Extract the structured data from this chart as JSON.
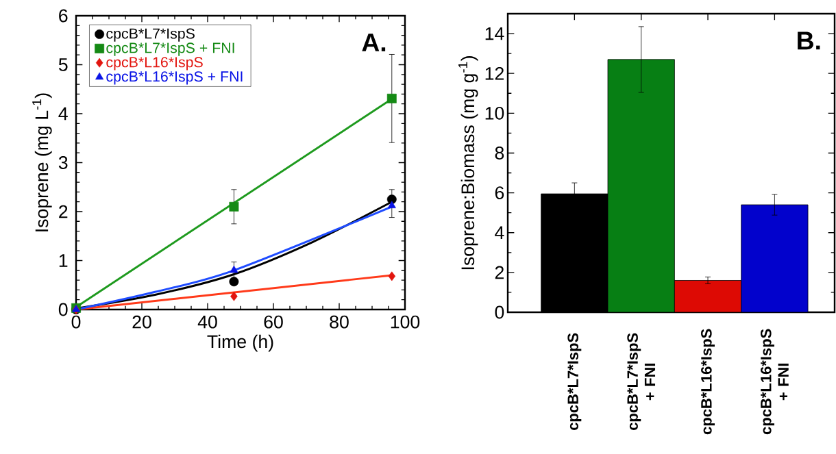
{
  "chart_data": [
    {
      "type": "scatter",
      "xlabel": "Time (h)",
      "ylabel": "Isoprene (mg L$^{-1}$)",
      "xlim": [
        0,
        100
      ],
      "ylim": [
        0,
        6
      ],
      "xticks": [
        0,
        20,
        40,
        60,
        80,
        100
      ],
      "yticks": [
        0,
        1,
        2,
        3,
        4,
        5,
        6
      ],
      "legend": "top left",
      "annotations": [
        "A."
      ],
      "series": [
        {
          "name": "cpcB*L7*IspS",
          "type": "scatter",
          "marker": "circle",
          "color": "#000000",
          "x": [
            0,
            48,
            96
          ],
          "values": [
            0,
            0.57,
            2.25
          ],
          "errors": [
            null,
            null,
            [
              1.88,
              2.45
            ]
          ]
        },
        {
          "name": "cpcB*L7*IspS + FNI",
          "type": "scatter",
          "marker": "square",
          "color": "#158a15",
          "x": [
            0,
            48,
            96
          ],
          "values": [
            0.03,
            2.1,
            4.31
          ],
          "errors": [
            null,
            0.35,
            0.9
          ]
        },
        {
          "name": "cpcB*L16*IspS",
          "type": "scatter",
          "marker": "diamond",
          "color": "#e2150f",
          "x": [
            0,
            48,
            96
          ],
          "values": [
            0,
            0.27,
            0.68
          ],
          "errors": [
            null,
            null,
            null
          ]
        },
        {
          "name": "cpcB*L16*IspS + FNI",
          "type": "scatter",
          "marker": "triangle",
          "color": "#0a14e6",
          "x": [
            0,
            48,
            96
          ],
          "values": [
            0,
            0.8,
            2.12
          ],
          "errors": [
            null,
            0.17,
            null
          ]
        },
        {
          "type": "line",
          "color": "#000000",
          "x": [
            0,
            24,
            48,
            72,
            96
          ],
          "values": [
            0.02,
            0.3,
            0.72,
            1.38,
            2.2
          ]
        },
        {
          "type": "line",
          "color": "#1e9a1e",
          "x": [
            0,
            96
          ],
          "values": [
            0.05,
            4.3
          ]
        },
        {
          "type": "line",
          "color": "#ff3a1a",
          "x": [
            0,
            96
          ],
          "values": [
            0,
            0.7
          ]
        },
        {
          "type": "line",
          "color": "#1f4cff",
          "x": [
            0,
            24,
            48,
            96
          ],
          "values": [
            0,
            0.36,
            0.8,
            2.1
          ]
        }
      ]
    },
    {
      "type": "bar",
      "ylabel": "Isoprene:Biomass (mg g$^{-1}$)",
      "categories": [
        "cpcB*L7*IspS",
        "cpcB*L7*IspS + FNI",
        "cpcB*L16*IspS",
        "cpcB*L16*IspS + FNI"
      ],
      "values": [
        5.95,
        12.7,
        1.6,
        5.4
      ],
      "errors": [
        0.55,
        1.65,
        0.17,
        0.52
      ],
      "colors": [
        "#000000",
        "#077f14",
        "#dd0a04",
        "#0202cc"
      ],
      "ylim": [
        0,
        15
      ],
      "yticks": [
        0,
        2,
        4,
        6,
        8,
        10,
        12,
        14
      ],
      "annotations": [
        "B."
      ]
    }
  ]
}
